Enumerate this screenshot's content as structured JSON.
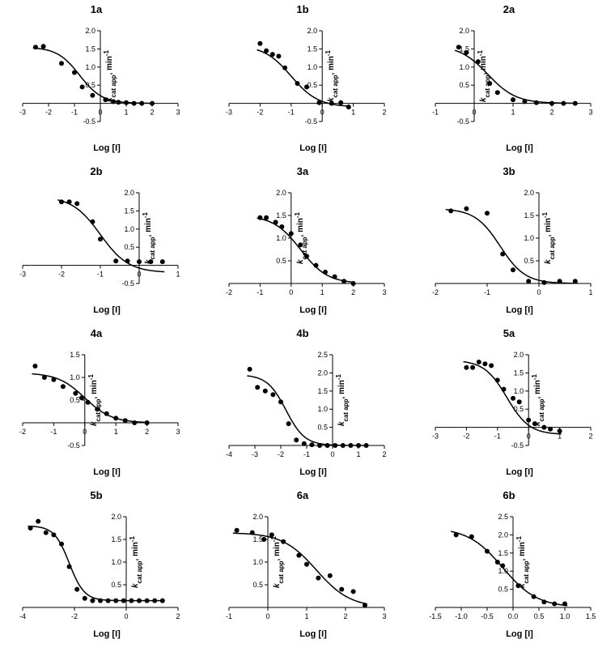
{
  "chart_data": [
    {
      "title": "1a",
      "type": "scatter",
      "xlabel": "Log [I]",
      "ylabel_html": "k_cat app, min^-1",
      "xlim": [
        -3,
        3
      ],
      "ylim": [
        -0.5,
        2.0
      ],
      "xticks": [
        "-3",
        "-2",
        "-1",
        "0",
        "1",
        "2",
        "3"
      ],
      "yticks": [
        "-0.5",
        "0.5",
        "1.0",
        "1.5",
        "2.0"
      ],
      "points": [
        [
          -2.5,
          1.55
        ],
        [
          -2.2,
          1.57
        ],
        [
          -1.5,
          1.1
        ],
        [
          -1.0,
          0.85
        ],
        [
          -0.7,
          0.45
        ],
        [
          -0.3,
          0.22
        ],
        [
          0.2,
          0.1
        ],
        [
          0.5,
          0.05
        ],
        [
          0.7,
          0.03
        ],
        [
          1.0,
          0.02
        ],
        [
          1.3,
          0.0
        ],
        [
          1.6,
          0.0
        ],
        [
          2.0,
          0.0
        ]
      ],
      "fit": {
        "top": 1.55,
        "bottom": 0.0,
        "logEC50": -0.8,
        "hill": 1.0
      }
    },
    {
      "title": "1b",
      "type": "scatter",
      "xlabel": "Log [I]",
      "ylabel_html": "k_cat app, min^-1",
      "xlim": [
        -3,
        2
      ],
      "ylim": [
        -0.5,
        2.0
      ],
      "xticks": [
        "-3",
        "-2",
        "-1",
        "0",
        "1",
        "2"
      ],
      "yticks": [
        "-0.5",
        "0.5",
        "1.0",
        "1.5",
        "2.0"
      ],
      "points": [
        [
          -2.0,
          1.65
        ],
        [
          -1.8,
          1.45
        ],
        [
          -1.6,
          1.35
        ],
        [
          -1.4,
          1.3
        ],
        [
          -1.2,
          0.98
        ],
        [
          -0.8,
          0.55
        ],
        [
          -0.5,
          0.45
        ],
        [
          -0.1,
          0.02
        ],
        [
          0.3,
          0.0
        ],
        [
          0.6,
          0.02
        ],
        [
          0.85,
          -0.1
        ]
      ],
      "fit": {
        "top": 1.6,
        "bottom": -0.1,
        "logEC50": -1.0,
        "hill": 1.0
      }
    },
    {
      "title": "2a",
      "type": "scatter",
      "xlabel": "Log [I]",
      "ylabel_html": "k_cat app, min^-1",
      "xlim": [
        -1,
        3
      ],
      "ylim": [
        -0.5,
        2.0
      ],
      "xticks": [
        "-1",
        "0",
        "1",
        "2",
        "3"
      ],
      "yticks": [
        "-0.5",
        "0.5",
        "1.0",
        "1.5",
        "2.0"
      ],
      "points": [
        [
          -0.4,
          1.55
        ],
        [
          -0.2,
          1.4
        ],
        [
          0.1,
          1.15
        ],
        [
          0.4,
          0.55
        ],
        [
          0.6,
          0.3
        ],
        [
          1.0,
          0.1
        ],
        [
          1.3,
          0.05
        ],
        [
          1.6,
          0.02
        ],
        [
          2.0,
          0.0
        ],
        [
          2.3,
          0.0
        ],
        [
          2.6,
          0.0
        ]
      ],
      "fit": {
        "top": 1.6,
        "bottom": 0.0,
        "logEC50": 0.35,
        "hill": 1.2
      }
    },
    {
      "title": "2b",
      "type": "scatter",
      "xlabel": "Log [I]",
      "ylabel_html": "k_cat app, min^-1",
      "xlim": [
        -3,
        1
      ],
      "ylim": [
        -0.5,
        2.0
      ],
      "xticks": [
        "-3",
        "-2",
        "-1",
        "0",
        "1"
      ],
      "yticks": [
        "-0.5",
        "0.5",
        "1.0",
        "1.5",
        "2.0"
      ],
      "points": [
        [
          -2.0,
          1.75
        ],
        [
          -1.8,
          1.75
        ],
        [
          -1.6,
          1.7
        ],
        [
          -1.2,
          1.2
        ],
        [
          -1.0,
          0.72
        ],
        [
          -0.6,
          0.12
        ],
        [
          -0.3,
          0.12
        ],
        [
          0.0,
          0.1
        ],
        [
          0.3,
          0.1
        ],
        [
          0.6,
          0.1
        ]
      ],
      "fit": {
        "top": 1.9,
        "bottom": -0.2,
        "logEC50": -1.0,
        "hill": 1.2
      }
    },
    {
      "title": "3a",
      "type": "scatter",
      "xlabel": "Log [I]",
      "ylabel_html": "k_cat app, min^-1",
      "xlim": [
        -2,
        3
      ],
      "ylim": [
        0,
        2.0
      ],
      "xticks": [
        "-2",
        "-1",
        "0",
        "1",
        "2",
        "3"
      ],
      "yticks": [
        "0.5",
        "1.0",
        "1.5",
        "2.0"
      ],
      "points": [
        [
          -1.0,
          1.45
        ],
        [
          -0.8,
          1.45
        ],
        [
          -0.5,
          1.35
        ],
        [
          -0.3,
          1.25
        ],
        [
          0.0,
          1.1
        ],
        [
          0.3,
          0.85
        ],
        [
          0.5,
          0.6
        ],
        [
          0.8,
          0.4
        ],
        [
          1.1,
          0.25
        ],
        [
          1.4,
          0.15
        ],
        [
          1.7,
          0.05
        ],
        [
          2.0,
          0.0
        ]
      ],
      "fit": {
        "top": 1.5,
        "bottom": 0.0,
        "logEC50": 0.3,
        "hill": 1.0
      }
    },
    {
      "title": "3b",
      "type": "scatter",
      "xlabel": "Log [I]",
      "ylabel_html": "k_cat app, min^-1",
      "xlim": [
        -2,
        1
      ],
      "ylim": [
        0,
        2.0
      ],
      "xticks": [
        "-2",
        "-1",
        "0",
        "1"
      ],
      "yticks": [
        "0.5",
        "1.0",
        "1.5",
        "2.0"
      ],
      "points": [
        [
          -1.7,
          1.6
        ],
        [
          -1.4,
          1.65
        ],
        [
          -1.0,
          1.55
        ],
        [
          -0.7,
          0.65
        ],
        [
          -0.5,
          0.3
        ],
        [
          -0.2,
          0.05
        ],
        [
          0.1,
          0.02
        ],
        [
          0.4,
          0.05
        ],
        [
          0.7,
          0.05
        ]
      ],
      "fit": {
        "top": 1.65,
        "bottom": 0.0,
        "logEC50": -0.75,
        "hill": 1.8
      }
    },
    {
      "title": "4a",
      "type": "scatter",
      "xlabel": "Log [I]",
      "ylabel_html": "k_cat app, min^-1",
      "xlim": [
        -2,
        3
      ],
      "ylim": [
        -0.5,
        1.5
      ],
      "xticks": [
        "-2",
        "-1",
        "0",
        "1",
        "2",
        "3"
      ],
      "yticks": [
        "-0.5",
        "0.5",
        "1.0",
        "1.5"
      ],
      "points": [
        [
          -1.6,
          1.25
        ],
        [
          -1.3,
          1.0
        ],
        [
          -1.0,
          0.95
        ],
        [
          -0.7,
          0.8
        ],
        [
          -0.3,
          0.65
        ],
        [
          -0.1,
          0.55
        ],
        [
          0.1,
          0.45
        ],
        [
          0.4,
          0.3
        ],
        [
          0.7,
          0.2
        ],
        [
          1.0,
          0.1
        ],
        [
          1.3,
          0.05
        ],
        [
          1.6,
          0.0
        ],
        [
          2.0,
          0.0
        ]
      ],
      "fit": {
        "top": 1.1,
        "bottom": 0.0,
        "logEC50": 0.0,
        "hill": 1.0
      }
    },
    {
      "title": "4b",
      "type": "scatter",
      "xlabel": "Log [I]",
      "ylabel_html": "k_cat app, min^-1",
      "xlim": [
        -4,
        2
      ],
      "ylim": [
        0,
        2.5
      ],
      "xticks": [
        "-4",
        "-3",
        "-2",
        "-1",
        "0",
        "1",
        "2"
      ],
      "yticks": [
        "0.5",
        "1.0",
        "1.5",
        "2.0",
        "2.5"
      ],
      "points": [
        [
          -3.2,
          2.1
        ],
        [
          -2.9,
          1.6
        ],
        [
          -2.6,
          1.5
        ],
        [
          -2.3,
          1.4
        ],
        [
          -2.0,
          1.2
        ],
        [
          -1.7,
          0.6
        ],
        [
          -1.4,
          0.15
        ],
        [
          -1.1,
          0.05
        ],
        [
          -0.8,
          0.02
        ],
        [
          -0.5,
          0.0
        ],
        [
          -0.2,
          0.0
        ],
        [
          0.1,
          0.0
        ],
        [
          0.4,
          0.0
        ],
        [
          0.7,
          0.0
        ],
        [
          1.0,
          0.0
        ],
        [
          1.3,
          0.0
        ]
      ],
      "fit": {
        "top": 1.95,
        "bottom": 0.0,
        "logEC50": -1.8,
        "hill": 1.2
      }
    },
    {
      "title": "5a",
      "type": "scatter",
      "xlabel": "Log [I]",
      "ylabel_html": "k_cat app, min^-1",
      "xlim": [
        -3,
        2
      ],
      "ylim": [
        -0.5,
        2.0
      ],
      "xticks": [
        "-3",
        "-2",
        "-1",
        "0",
        "1",
        "2"
      ],
      "yticks": [
        "-0.5",
        "0.5",
        "1.0",
        "1.5",
        "2.0"
      ],
      "points": [
        [
          -2.0,
          1.65
        ],
        [
          -1.8,
          1.65
        ],
        [
          -1.6,
          1.8
        ],
        [
          -1.4,
          1.75
        ],
        [
          -1.2,
          1.7
        ],
        [
          -1.0,
          1.3
        ],
        [
          -0.8,
          1.05
        ],
        [
          -0.5,
          0.8
        ],
        [
          -0.3,
          0.7
        ],
        [
          0.0,
          0.2
        ],
        [
          0.2,
          0.1
        ],
        [
          0.5,
          0.0
        ],
        [
          0.7,
          -0.05
        ],
        [
          1.0,
          -0.1
        ]
      ],
      "fit": {
        "top": 1.85,
        "bottom": -0.2,
        "logEC50": -0.7,
        "hill": 1.2
      }
    },
    {
      "title": "5b",
      "type": "scatter",
      "xlabel": "Log [I]",
      "ylabel_html": "k_cat app, min^-1",
      "xlim": [
        -4,
        2
      ],
      "ylim": [
        0,
        2.0
      ],
      "xticks": [
        "-4",
        "-2",
        "0",
        "2"
      ],
      "yticks": [
        "0.5",
        "1.0",
        "1.5",
        "2.0"
      ],
      "points": [
        [
          -3.7,
          1.75
        ],
        [
          -3.4,
          1.9
        ],
        [
          -3.1,
          1.65
        ],
        [
          -2.8,
          1.6
        ],
        [
          -2.5,
          1.4
        ],
        [
          -2.2,
          0.9
        ],
        [
          -1.9,
          0.4
        ],
        [
          -1.6,
          0.2
        ],
        [
          -1.3,
          0.15
        ],
        [
          -1.0,
          0.15
        ],
        [
          -0.7,
          0.15
        ],
        [
          -0.4,
          0.15
        ],
        [
          -0.1,
          0.15
        ],
        [
          0.2,
          0.15
        ],
        [
          0.5,
          0.15
        ],
        [
          0.8,
          0.15
        ],
        [
          1.1,
          0.15
        ],
        [
          1.4,
          0.15
        ]
      ],
      "fit": {
        "top": 1.8,
        "bottom": 0.15,
        "logEC50": -2.2,
        "hill": 1.5
      }
    },
    {
      "title": "6a",
      "type": "scatter",
      "xlabel": "Log [I]",
      "ylabel_html": "k_cat app, min^-1",
      "xlim": [
        -1,
        3
      ],
      "ylim": [
        0,
        2.0
      ],
      "xticks": [
        "-1",
        "0",
        "1",
        "2",
        "3"
      ],
      "yticks": [
        "0.5",
        "1.0",
        "1.5",
        "2.0"
      ],
      "points": [
        [
          -0.8,
          1.7
        ],
        [
          -0.4,
          1.65
        ],
        [
          -0.1,
          1.5
        ],
        [
          0.1,
          1.6
        ],
        [
          0.4,
          1.45
        ],
        [
          0.8,
          1.15
        ],
        [
          1.0,
          0.95
        ],
        [
          1.3,
          0.65
        ],
        [
          1.6,
          0.7
        ],
        [
          1.9,
          0.4
        ],
        [
          2.2,
          0.35
        ],
        [
          2.5,
          0.05
        ]
      ],
      "fit": {
        "top": 1.65,
        "bottom": 0.0,
        "logEC50": 1.25,
        "hill": 1.0
      }
    },
    {
      "title": "6b",
      "type": "scatter",
      "xlabel": "Log [I]",
      "ylabel_html": "k_cat app, min^-1",
      "xlim": [
        -1.5,
        1.5
      ],
      "ylim": [
        0,
        2.5
      ],
      "xticks": [
        "-1.5",
        "-1.0",
        "-0.5",
        "0.0",
        "0.5",
        "1.0",
        "1.5"
      ],
      "yticks": [
        "0.5",
        "1.0",
        "1.5",
        "2.0",
        "2.5"
      ],
      "points": [
        [
          -1.1,
          2.0
        ],
        [
          -0.8,
          1.95
        ],
        [
          -0.5,
          1.55
        ],
        [
          -0.3,
          1.25
        ],
        [
          -0.2,
          1.15
        ],
        [
          0.1,
          0.6
        ],
        [
          0.4,
          0.3
        ],
        [
          0.6,
          0.15
        ],
        [
          0.8,
          0.1
        ],
        [
          1.0,
          0.1
        ]
      ],
      "fit": {
        "top": 2.2,
        "bottom": 0.0,
        "logEC50": -0.2,
        "hill": 1.3
      }
    }
  ]
}
